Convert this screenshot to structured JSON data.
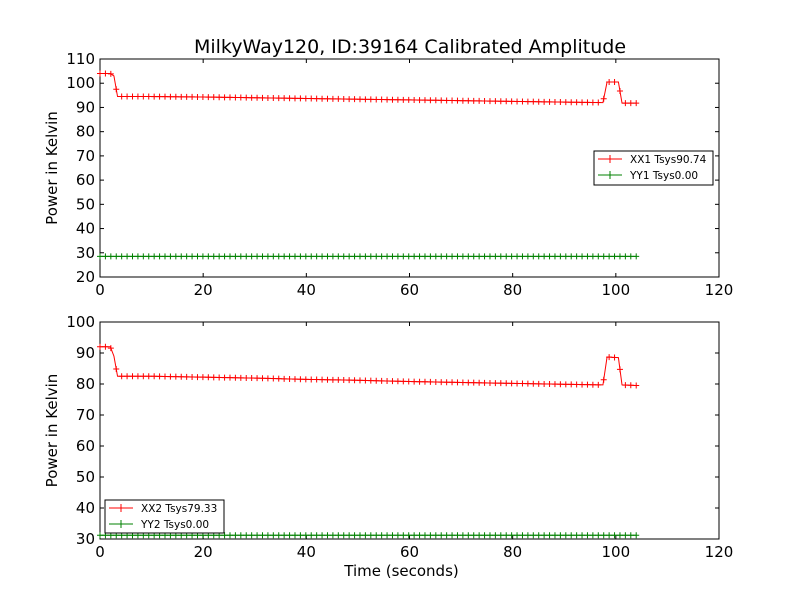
{
  "title": "MilkyWay120, ID:39164 Calibrated Amplitude",
  "chart_data": [
    {
      "type": "line",
      "ylabel": "Power in Kelvin",
      "xlabel": "",
      "xlim": [
        0,
        120
      ],
      "ylim": [
        20,
        110
      ],
      "xticks": [
        "0",
        "20",
        "40",
        "60",
        "80",
        "100",
        "120"
      ],
      "yticks": [
        "20",
        "30",
        "40",
        "50",
        "60",
        "70",
        "80",
        "90",
        "100",
        "110"
      ],
      "legend_position": "right",
      "series": [
        {
          "name": "XX1 Tsys90.74",
          "color": "#ff0000",
          "marker": "plus",
          "points": [
            [
              0,
              104
            ],
            [
              1,
              104
            ],
            [
              2,
              104
            ],
            [
              2.7,
              103
            ],
            [
              3.4,
              94.5
            ],
            [
              10,
              94.5
            ],
            [
              20,
              94.3
            ],
            [
              30,
              94
            ],
            [
              40,
              93.7
            ],
            [
              50,
              93.4
            ],
            [
              60,
              93.1
            ],
            [
              70,
              92.8
            ],
            [
              80,
              92.5
            ],
            [
              90,
              92.2
            ],
            [
              97.5,
              92
            ],
            [
              98.3,
              100.5
            ],
            [
              100.5,
              100.5
            ],
            [
              101.2,
              91.8
            ],
            [
              104,
              91.8
            ]
          ]
        },
        {
          "name": "YY1 Tsys0.00",
          "color": "#008000",
          "marker": "plus",
          "points": [
            [
              0,
              28.5
            ],
            [
              104,
              28.5
            ]
          ]
        }
      ]
    },
    {
      "type": "line",
      "ylabel": "Power in Kelvin",
      "xlabel": "Time (seconds)",
      "xlim": [
        0,
        120
      ],
      "ylim": [
        30,
        100
      ],
      "xticks": [
        "0",
        "20",
        "40",
        "60",
        "80",
        "100",
        "120"
      ],
      "yticks": [
        "30",
        "40",
        "50",
        "60",
        "70",
        "80",
        "90",
        "100"
      ],
      "legend_position": "lower-left",
      "series": [
        {
          "name": "XX2 Tsys79.33",
          "color": "#ff0000",
          "marker": "plus",
          "points": [
            [
              0,
              92
            ],
            [
              1,
              92
            ],
            [
              2,
              92
            ],
            [
              2.7,
              89
            ],
            [
              3.4,
              82.5
            ],
            [
              10,
              82.5
            ],
            [
              20,
              82.2
            ],
            [
              30,
              81.9
            ],
            [
              40,
              81.5
            ],
            [
              50,
              81.2
            ],
            [
              60,
              80.8
            ],
            [
              70,
              80.5
            ],
            [
              80,
              80.2
            ],
            [
              90,
              79.9
            ],
            [
              97.5,
              79.7
            ],
            [
              98.3,
              88.7
            ],
            [
              100.5,
              88.5
            ],
            [
              101.2,
              79.7
            ],
            [
              104,
              79.5
            ]
          ]
        },
        {
          "name": "YY2 Tsys0.00",
          "color": "#008000",
          "marker": "plus",
          "points": [
            [
              0,
              31.2
            ],
            [
              104,
              31.2
            ]
          ]
        }
      ]
    }
  ]
}
